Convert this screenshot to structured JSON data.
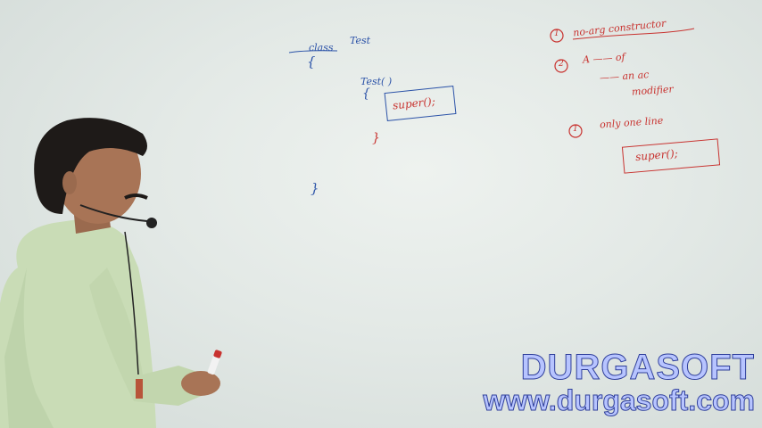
{
  "board": {
    "class_code": {
      "keyword": "class",
      "name": "Test",
      "open_brace": "{",
      "close_brace": "}"
    },
    "constructor_code": {
      "signature": "Test( )",
      "open_brace": "{",
      "body": "super();",
      "close_brace": "}"
    },
    "notes": [
      {
        "number": "1",
        "text": "no-arg constructor"
      },
      {
        "number": "2",
        "text": "A —— of"
      },
      {
        "number": "",
        "text": "—— an ac"
      },
      {
        "number": "",
        "text": "modifier"
      },
      {
        "number": "1",
        "text": "only one line"
      }
    ],
    "boxed_code": "super();"
  },
  "watermark": {
    "brand": "DURGASOFT",
    "url": "www.durgasoft.com"
  },
  "colors": {
    "ink_blue": "#2c53a8",
    "ink_red": "#c8322f",
    "shirt": "#c9dcb6"
  },
  "icons": {
    "microphone": "microphone-icon",
    "marker": "marker-pen"
  }
}
